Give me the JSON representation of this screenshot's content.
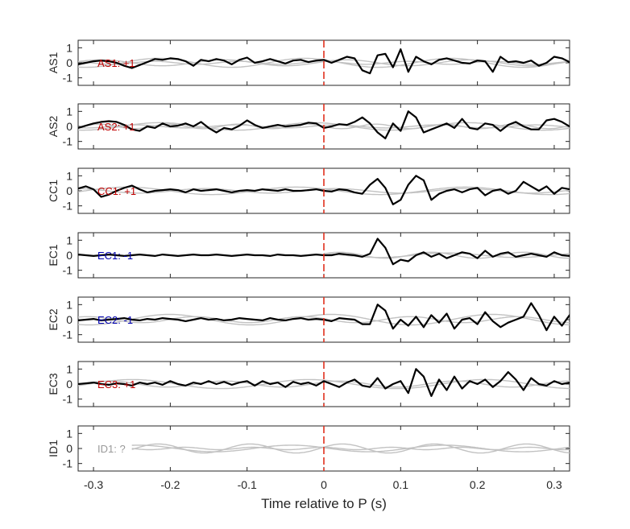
{
  "chart_data": {
    "type": "line",
    "xlabel": "Time relative to P (s)",
    "xlim": [
      -0.32,
      0.32
    ],
    "x_ticks": [
      -0.3,
      -0.2,
      -0.1,
      0,
      0.1,
      0.2,
      0.3
    ],
    "x_tick_labels": [
      "-0.3",
      "-0.2",
      "-0.1",
      "0",
      "0.1",
      "0.2",
      "0.3"
    ],
    "ylim": [
      -1.5,
      1.5
    ],
    "y_ticks": [
      -1,
      0,
      1
    ],
    "y_tick_labels": [
      "-1",
      "0",
      "1"
    ],
    "marker_time": 0,
    "colors": {
      "positive": "#c00000",
      "negative": "#0000b0",
      "unknown": "#999999",
      "trace": "#000000",
      "reference": "#c2c2c2",
      "marker": "#e0301e"
    },
    "panels": [
      {
        "name": "AS1",
        "label": "AS1: +1",
        "label_color": "#c00000",
        "t_start": -0.32,
        "dt": 0.01,
        "values": [
          -0.1,
          0.0,
          0.1,
          0.15,
          0.1,
          0.0,
          -0.2,
          -0.35,
          -0.15,
          0.05,
          0.25,
          0.2,
          0.3,
          0.25,
          0.1,
          -0.2,
          0.2,
          0.1,
          0.25,
          0.15,
          -0.1,
          0.2,
          0.35,
          0.0,
          0.1,
          0.25,
          0.1,
          -0.05,
          0.15,
          0.2,
          0.05,
          0.15,
          0.2,
          0.0,
          0.2,
          0.4,
          0.3,
          -0.5,
          -0.7,
          0.5,
          0.6,
          -0.3,
          0.9,
          -0.6,
          0.4,
          0.1,
          -0.1,
          0.2,
          0.3,
          0.15,
          0.0,
          -0.05,
          0.15,
          0.1,
          -0.6,
          0.4,
          0.05,
          0.1,
          0.0,
          0.15,
          -0.2,
          0.0,
          0.4,
          0.3,
          0.05,
          0.1,
          -0.2,
          -0.35,
          0.3
        ],
        "ref_traces": [
          {
            "amp": 0.2,
            "period": 0.16,
            "phase": 0.4,
            "start": -0.32
          },
          {
            "amp": 0.1,
            "period": 0.11,
            "phase": 1.6,
            "start": -0.32
          },
          {
            "amp": 0.3,
            "period": 0.19,
            "phase": 2.4,
            "start": -0.32
          }
        ]
      },
      {
        "name": "AS2",
        "label": "AS2: +1",
        "label_color": "#c00000",
        "t_start": -0.32,
        "dt": 0.01,
        "values": [
          -0.1,
          0.05,
          0.2,
          0.3,
          0.35,
          0.3,
          0.1,
          -0.2,
          -0.3,
          0.0,
          -0.1,
          0.2,
          0.0,
          0.05,
          0.2,
          0.0,
          0.3,
          -0.1,
          -0.4,
          -0.1,
          -0.2,
          0.05,
          0.4,
          0.1,
          -0.1,
          0.0,
          0.1,
          0.0,
          0.05,
          0.1,
          0.25,
          0.2,
          -0.1,
          0.0,
          0.15,
          0.1,
          0.3,
          0.6,
          0.2,
          -0.4,
          -0.8,
          0.2,
          -0.3,
          1.0,
          0.6,
          -0.4,
          -0.2,
          0.0,
          0.2,
          -0.1,
          0.5,
          -0.1,
          -0.2,
          0.2,
          0.1,
          -0.3,
          0.1,
          0.3,
          0.0,
          -0.2,
          -0.2,
          0.4,
          0.5,
          0.3,
          0.0,
          -0.3,
          0.15
        ],
        "ref_traces": [
          {
            "amp": 0.1,
            "period": 0.13,
            "phase": 0.8,
            "start": -0.32
          },
          {
            "amp": 0.25,
            "period": 0.2,
            "phase": 2.0,
            "start": -0.32
          },
          {
            "amp": 0.15,
            "period": 0.09,
            "phase": 3.1,
            "start": -0.32
          }
        ]
      },
      {
        "name": "CC1",
        "label": "CC1: +1",
        "label_color": "#c00000",
        "t_start": -0.32,
        "dt": 0.01,
        "values": [
          0.15,
          0.3,
          0.1,
          -0.4,
          -0.25,
          0.0,
          0.2,
          0.35,
          0.1,
          -0.1,
          0.0,
          0.05,
          0.1,
          0.05,
          -0.1,
          0.1,
          0.0,
          0.05,
          0.1,
          0.0,
          -0.1,
          0.0,
          0.05,
          0.0,
          0.1,
          0.05,
          0.0,
          0.1,
          0.0,
          0.0,
          0.05,
          0.1,
          0.0,
          -0.05,
          0.1,
          0.05,
          -0.1,
          -0.2,
          0.4,
          0.8,
          0.2,
          -0.9,
          -0.6,
          0.4,
          1.0,
          0.7,
          -0.6,
          -0.2,
          0.0,
          0.1,
          -0.1,
          0.1,
          0.2,
          -0.3,
          0.0,
          0.1,
          -0.2,
          0.0,
          0.6,
          0.3,
          0.0,
          0.3,
          -0.2,
          0.2,
          0.1,
          -0.1,
          -0.5,
          0.3
        ],
        "ref_traces": [
          {
            "amp": 0.15,
            "period": 0.17,
            "phase": 1.0,
            "start": -0.32
          },
          {
            "amp": 0.25,
            "period": 0.22,
            "phase": 2.6,
            "start": -0.32
          }
        ]
      },
      {
        "name": "EC1",
        "label": "EC1: -1",
        "label_color": "#0000b0",
        "t_start": -0.32,
        "dt": 0.01,
        "values": [
          0.05,
          0.0,
          -0.05,
          0.0,
          0.05,
          0.0,
          -0.05,
          0.0,
          0.05,
          0.0,
          -0.05,
          0.05,
          0.0,
          -0.05,
          0.0,
          0.05,
          0.0,
          0.0,
          0.05,
          0.0,
          -0.05,
          0.0,
          0.05,
          0.0,
          0.0,
          -0.05,
          0.05,
          0.0,
          0.0,
          -0.05,
          0.0,
          0.05,
          0.0,
          0.0,
          0.1,
          0.05,
          0.0,
          -0.1,
          0.1,
          1.1,
          0.5,
          -0.6,
          -0.3,
          -0.4,
          0.0,
          0.2,
          -0.1,
          0.1,
          -0.2,
          0.0,
          0.2,
          0.1,
          -0.2,
          0.3,
          -0.1,
          0.1,
          0.2,
          -0.1,
          0.0,
          0.1,
          0.0,
          -0.1,
          0.2,
          0.0,
          -0.05,
          0.0,
          0.15
        ],
        "ref_traces": [
          {
            "amp": 0.2,
            "period": 0.12,
            "phase": 0.5,
            "start": 0.0
          },
          {
            "amp": 0.15,
            "period": 0.18,
            "phase": 2.2,
            "start": 0.0
          }
        ]
      },
      {
        "name": "EC2",
        "label": "EC2: -1",
        "label_color": "#0000b0",
        "t_start": -0.32,
        "dt": 0.01,
        "values": [
          -0.05,
          0.0,
          0.05,
          -0.05,
          0.0,
          0.05,
          0.1,
          0.0,
          -0.05,
          0.05,
          0.0,
          0.1,
          0.05,
          0.0,
          -0.1,
          0.0,
          0.1,
          0.0,
          0.05,
          -0.05,
          0.0,
          0.1,
          0.05,
          0.0,
          -0.05,
          0.1,
          0.0,
          -0.05,
          0.05,
          0.1,
          0.0,
          0.05,
          0.0,
          -0.1,
          0.1,
          0.05,
          0.0,
          -0.3,
          -0.3,
          1.0,
          0.6,
          -0.6,
          0.0,
          -0.4,
          0.2,
          -0.5,
          0.3,
          -0.2,
          0.4,
          -0.6,
          0.0,
          0.1,
          -0.3,
          0.5,
          -0.1,
          -0.5,
          -0.2,
          0.0,
          0.2,
          1.1,
          0.3,
          -0.7,
          0.2,
          -0.4,
          0.3,
          -0.6,
          -0.3,
          -0.2
        ],
        "ref_traces": [
          {
            "amp": 0.35,
            "period": 0.21,
            "phase": 1.3,
            "start": -0.32
          },
          {
            "amp": 0.2,
            "period": 0.14,
            "phase": 2.8,
            "start": -0.32
          }
        ]
      },
      {
        "name": "EC3",
        "label": "EC3: +1",
        "label_color": "#c00000",
        "t_start": -0.32,
        "dt": 0.01,
        "values": [
          0.0,
          0.05,
          0.1,
          0.0,
          -0.05,
          0.05,
          0.0,
          -0.1,
          0.1,
          0.0,
          0.1,
          -0.05,
          0.2,
          0.0,
          -0.1,
          0.1,
          0.0,
          0.2,
          0.0,
          0.15,
          -0.05,
          0.1,
          0.2,
          -0.1,
          0.2,
          0.0,
          0.1,
          -0.2,
          0.15,
          0.0,
          0.1,
          -0.1,
          0.2,
          0.0,
          -0.2,
          0.1,
          0.3,
          -0.1,
          -0.2,
          0.4,
          -0.3,
          0.0,
          0.2,
          -0.6,
          1.0,
          0.5,
          -0.8,
          0.3,
          -0.4,
          0.5,
          -0.3,
          0.2,
          0.0,
          0.3,
          -0.2,
          0.2,
          0.8,
          0.3,
          -0.4,
          0.4,
          0.0,
          -0.1,
          0.2,
          0.0,
          0.1,
          0.0,
          0.1
        ],
        "ref_traces": [
          {
            "amp": 0.2,
            "period": 0.15,
            "phase": 0.7,
            "start": -0.32
          },
          {
            "amp": 0.3,
            "period": 0.23,
            "phase": 2.1,
            "start": -0.32
          }
        ]
      },
      {
        "name": "ID1",
        "label": "ID1: ?",
        "label_color": "#999999",
        "t_start": -0.32,
        "dt": 0.01,
        "values": [],
        "ref_traces": [
          {
            "amp": 0.3,
            "period": 0.12,
            "phase": 0.3,
            "start": -0.25
          },
          {
            "amp": 0.08,
            "period": 0.09,
            "phase": 1.7,
            "start": -0.25
          },
          {
            "amp": 0.22,
            "period": 0.2,
            "phase": 2.9,
            "start": -0.25
          }
        ]
      }
    ]
  }
}
